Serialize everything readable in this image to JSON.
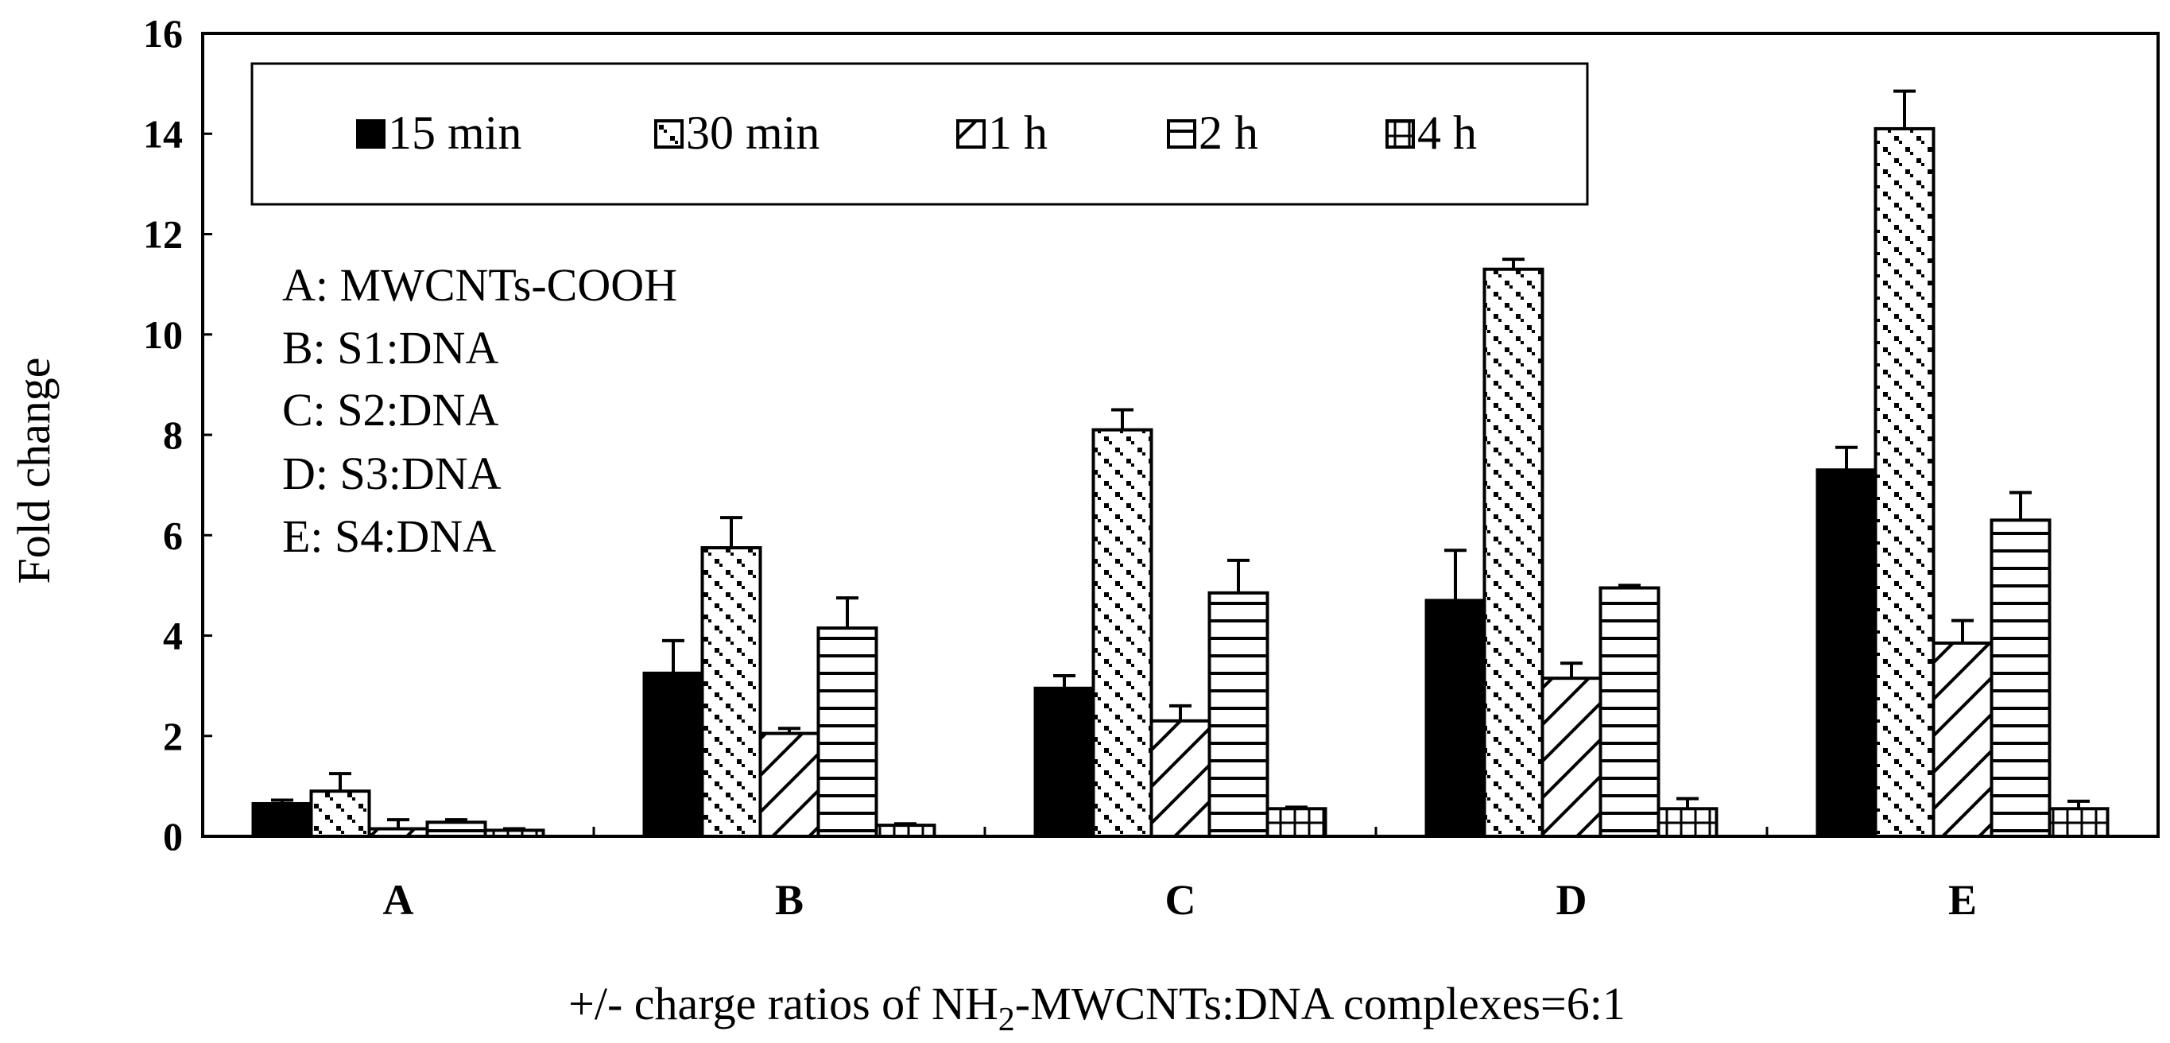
{
  "chart_data": {
    "type": "bar",
    "ylabel": "Fold change",
    "xlabel_parts": [
      "+/- charge ratios of  NH",
      "2",
      "-MWCNTs:DNA complexes=6:1"
    ],
    "ylim": [
      0,
      16
    ],
    "yticks": [
      "0",
      "2",
      "4",
      "6",
      "8",
      "10",
      "12",
      "14",
      "16"
    ],
    "categories": [
      "A",
      "B",
      "C",
      "D",
      "E"
    ],
    "legend_position": "top-left",
    "series": [
      {
        "name": "15 min",
        "pattern": "solid",
        "values": [
          0.65,
          3.25,
          2.95,
          4.7,
          7.3
        ],
        "errors": [
          0.07,
          0.65,
          0.25,
          1.0,
          0.45
        ]
      },
      {
        "name": "30 min",
        "pattern": "dots",
        "values": [
          0.9,
          5.75,
          8.1,
          11.3,
          14.1
        ],
        "errors": [
          0.35,
          0.6,
          0.4,
          0.2,
          0.75
        ]
      },
      {
        "name": "1 h",
        "pattern": "diagonal",
        "values": [
          0.15,
          2.05,
          2.3,
          3.15,
          3.85
        ],
        "errors": [
          0.18,
          0.1,
          0.3,
          0.3,
          0.45
        ]
      },
      {
        "name": "2 h",
        "pattern": "horizontal",
        "values": [
          0.28,
          4.15,
          4.85,
          4.95,
          6.3
        ],
        "errors": [
          0.05,
          0.6,
          0.65,
          0.05,
          0.55
        ]
      },
      {
        "name": "4 h",
        "pattern": "grid",
        "values": [
          0.12,
          0.22,
          0.55,
          0.55,
          0.55
        ],
        "errors": [
          0.03,
          0.03,
          0.03,
          0.2,
          0.15
        ]
      }
    ],
    "annotations": [
      "A: MWCNTs-COOH",
      "B:  S1:DNA",
      "C:  S2:DNA",
      "D:  S3:DNA",
      "E:  S4:DNA"
    ]
  }
}
